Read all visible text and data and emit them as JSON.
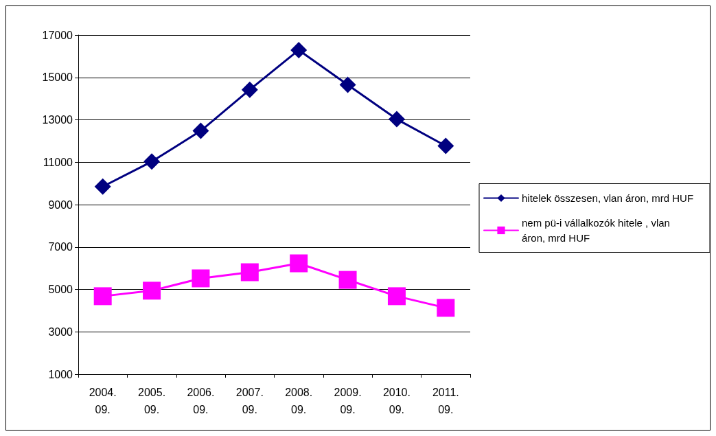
{
  "chart_data": {
    "type": "line",
    "categories": [
      "2004.\n09.",
      "2005.\n09.",
      "2006.\n09.",
      "2007.\n09.",
      "2008.\n09.",
      "2009.\n09.",
      "2010.\n09.",
      "2011.\n09."
    ],
    "series": [
      {
        "name": "hitelek összesen, vlan áron, mrd HUF",
        "color": "#000080",
        "marker": "diamond",
        "values": [
          9850,
          11030,
          12480,
          14420,
          16290,
          14650,
          13030,
          11770
        ]
      },
      {
        "name": "nem pü-i vállalkozók hitele , vlan áron, mrd HUF",
        "color": "#ff00ff",
        "marker": "square",
        "values": [
          4680,
          4940,
          5520,
          5810,
          6230,
          5450,
          4680,
          4130
        ]
      }
    ],
    "ylim": [
      1000,
      17000
    ],
    "yticks": [
      1000,
      3000,
      5000,
      7000,
      9000,
      11000,
      13000,
      15000,
      17000
    ],
    "grid": "y",
    "legend": "right",
    "line_style": "solid"
  }
}
